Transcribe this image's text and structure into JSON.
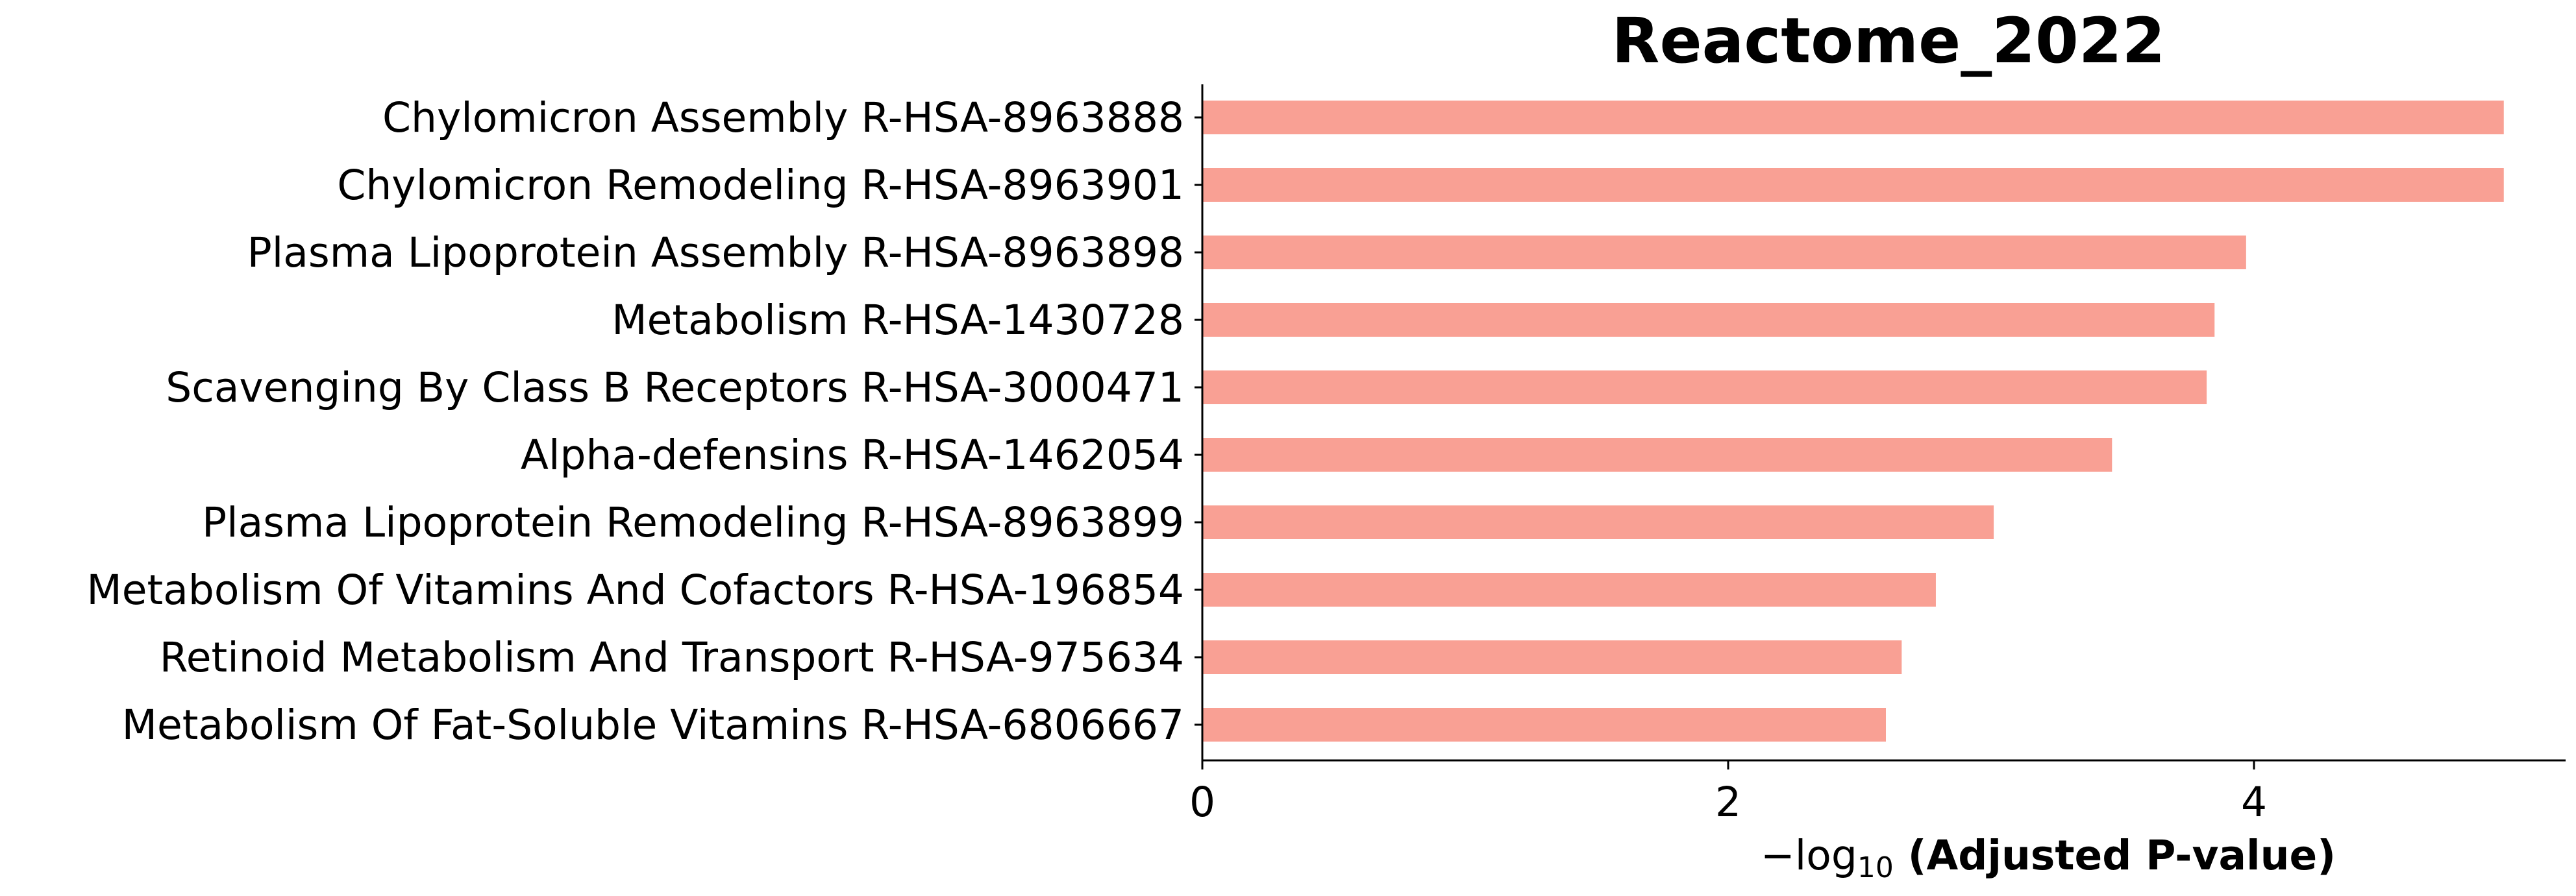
{
  "chart_data": {
    "type": "bar",
    "orientation": "horizontal",
    "title": "Reactome_2022",
    "xlabel_prefix": "−log",
    "xlabel_sub": "10",
    "xlabel_main": " (Adjusted P-value)",
    "xlim": [
      0,
      5.2
    ],
    "xticks": [
      0,
      2,
      4
    ],
    "bar_color": "#f9a094",
    "grid": false,
    "categories": [
      "Chylomicron Assembly R-HSA-8963888",
      "Chylomicron Remodeling R-HSA-8963901",
      "Plasma Lipoprotein Assembly R-HSA-8963898",
      "Metabolism R-HSA-1430728",
      "Scavenging By Class B Receptors R-HSA-3000471",
      "Alpha-defensins R-HSA-1462054",
      "Plasma Lipoprotein Remodeling R-HSA-8963899",
      "Metabolism Of Vitamins And Cofactors R-HSA-196854",
      "Retinoid Metabolism And Transport R-HSA-975634",
      "Metabolism Of Fat-Soluble Vitamins R-HSA-6806667"
    ],
    "values": [
      4.95,
      4.95,
      3.97,
      3.85,
      3.82,
      3.46,
      3.01,
      2.79,
      2.66,
      2.6
    ]
  }
}
